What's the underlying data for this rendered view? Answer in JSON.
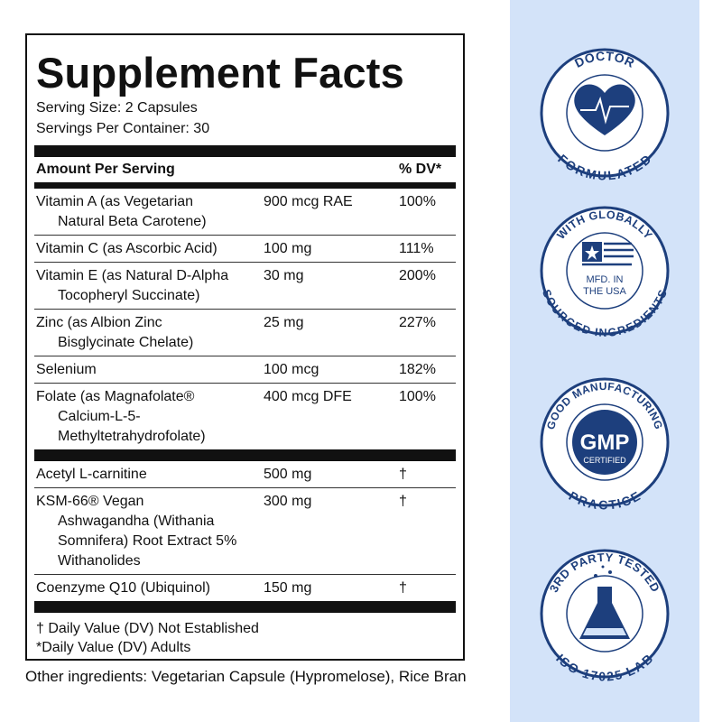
{
  "label": {
    "title": "Supplement Facts",
    "serving_size": "Serving Size: 2 Capsules",
    "servings_per_container": "Servings Per Container: 30",
    "header": {
      "amount": "Amount Per Serving",
      "dv": "% DV*"
    },
    "sections": [
      {
        "rows": [
          {
            "name": [
              "Vitamin A (as Vegetarian",
              "Natural Beta Carotene)"
            ],
            "amount": "900 mcg RAE",
            "dv": "100%"
          },
          {
            "name": [
              "Vitamin C (as Ascorbic Acid)"
            ],
            "amount": "100 mg",
            "dv": "111%"
          },
          {
            "name": [
              "Vitamin E (as Natural D-Alpha",
              "Tocopheryl Succinate)"
            ],
            "amount": "30 mg",
            "dv": "200%"
          },
          {
            "name": [
              "Zinc (as Albion Zinc",
              "Bisglycinate Chelate)"
            ],
            "amount": "25 mg",
            "dv": "227%"
          },
          {
            "name": [
              "Selenium"
            ],
            "amount": "100 mcg",
            "dv": "182%"
          },
          {
            "name": [
              "Folate (as Magnafolate®",
              "Calcium-L-5-",
              "Methyltetrahydrofolate)"
            ],
            "amount": "400 mcg DFE",
            "dv": "100%"
          }
        ]
      },
      {
        "rows": [
          {
            "name": [
              "Acetyl L-carnitine"
            ],
            "amount": "500 mg",
            "dv": "†"
          },
          {
            "name": [
              "KSM-66® Vegan",
              "Ashwagandha (Withania",
              "Somnifera) Root Extract 5%",
              "Withanolides"
            ],
            "amount": "300 mg",
            "dv": "†"
          },
          {
            "name": [
              "Coenzyme Q10 (Ubiquinol)"
            ],
            "amount": "150 mg",
            "dv": "†"
          }
        ]
      }
    ],
    "footnotes": [
      "† Daily Value (DV) Not Established",
      "*Daily Value (DV) Adults"
    ]
  },
  "other_ingredients": "Other ingredients: Vegetarian Capsule (Hypromelose), Rice Bran",
  "badges": [
    {
      "top": "DOCTOR",
      "bottom": "FORMULATED"
    },
    {
      "top": "WITH GLOBALLY",
      "bottom": "SOURCED INGREDIENTS",
      "center": [
        "MFD. IN",
        "THE USA"
      ]
    },
    {
      "top": "GOOD MANUFACTURING",
      "bottom": "PRACTICE",
      "center": [
        "GMP",
        "CERTIFIED"
      ]
    },
    {
      "top": "3RD PARTY TESTED",
      "bottom": "ISO 17025 LAB"
    }
  ]
}
